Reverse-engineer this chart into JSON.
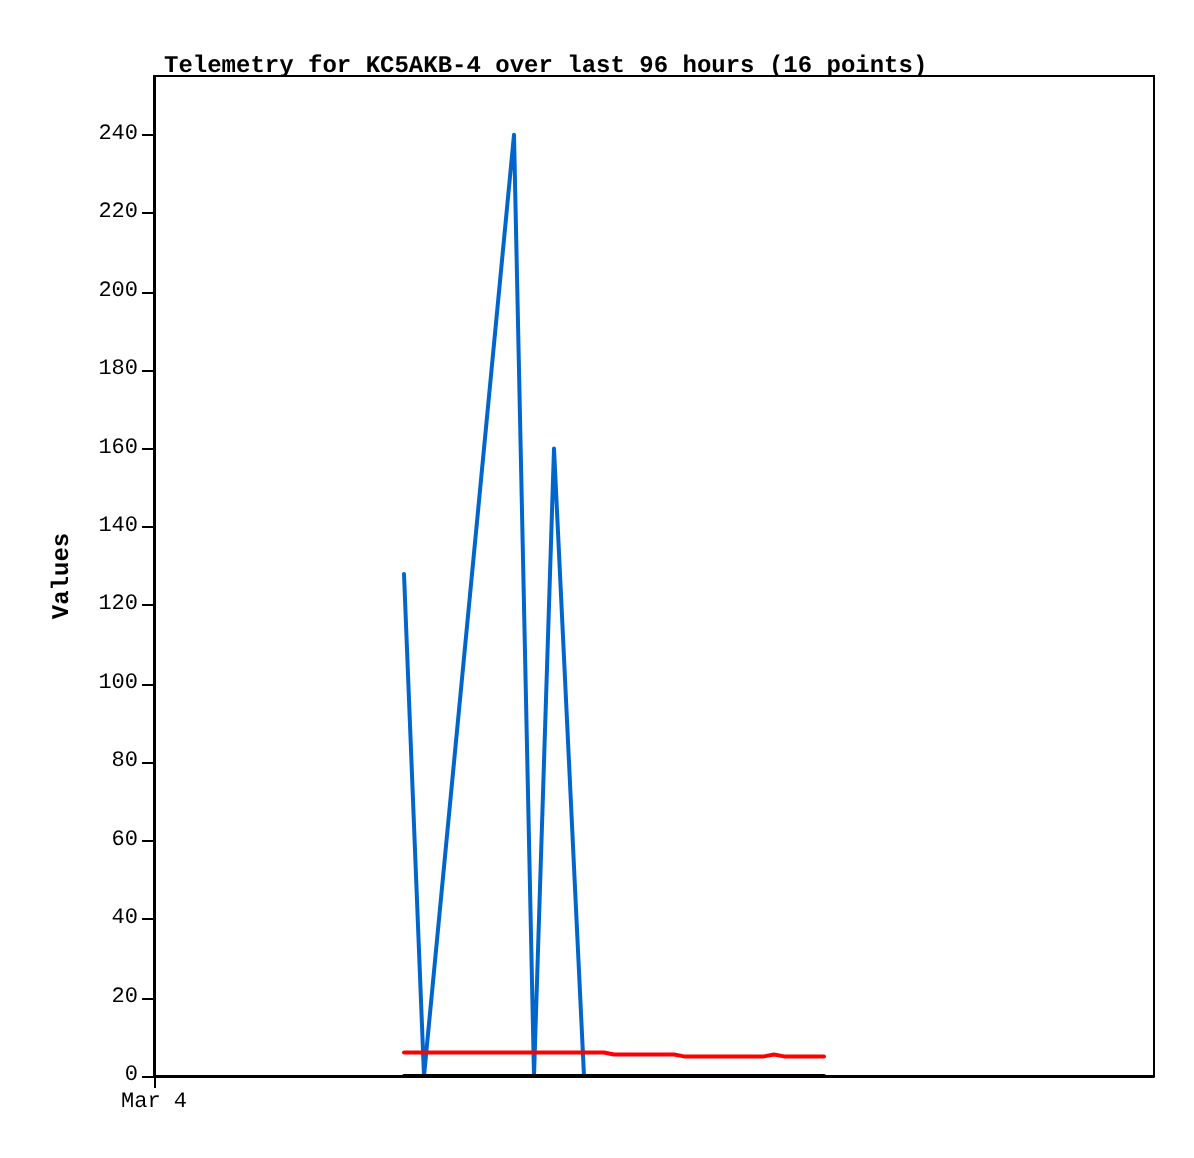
{
  "chart_data": {
    "type": "line",
    "title": "Telemetry for KC5AKB-4 over last 96 hours (16 points)",
    "ylabel": "Values",
    "categories": [
      "Mar 4",
      null,
      null,
      null,
      null,
      null,
      null,
      null,
      null,
      null,
      null,
      null,
      null,
      null,
      null,
      null,
      null,
      null,
      null,
      null,
      null,
      null,
      null,
      null,
      null,
      null,
      null,
      null,
      null,
      null,
      null,
      null,
      null,
      null,
      null,
      null,
      null,
      null,
      null,
      null,
      null,
      null,
      null,
      null,
      null,
      null,
      null,
      null,
      null,
      null,
      null,
      null,
      null,
      null,
      null,
      null,
      null,
      null,
      null,
      null,
      null,
      null,
      null,
      null,
      null,
      null,
      null,
      null,
      null,
      null,
      null,
      null,
      null,
      null,
      null,
      null,
      null,
      null,
      null,
      null,
      null,
      null,
      null,
      null,
      null,
      null,
      null,
      null,
      null,
      null,
      null,
      null,
      null,
      null,
      null,
      null,
      null,
      null,
      null,
      null,
      null
    ],
    "ylim": [
      0,
      255
    ],
    "yticks": [
      0,
      20,
      40,
      60,
      80,
      100,
      120,
      140,
      160,
      180,
      200,
      220,
      240
    ],
    "grid": false,
    "line_style": "solid",
    "series": [
      {
        "color": "#0066cc",
        "values": [
          null,
          null,
          null,
          null,
          null,
          null,
          null,
          null,
          null,
          null,
          null,
          null,
          null,
          null,
          null,
          null,
          null,
          null,
          null,
          null,
          null,
          null,
          null,
          null,
          null,
          128,
          null,
          0,
          null,
          null,
          null,
          null,
          null,
          null,
          null,
          null,
          240,
          null,
          0,
          null,
          160,
          null,
          null,
          0,
          null,
          null,
          null,
          null,
          null,
          null,
          null,
          null,
          null,
          null,
          null,
          null,
          null,
          null,
          null,
          null,
          null,
          null,
          null,
          null,
          null,
          null,
          null,
          null,
          null,
          null,
          null,
          null,
          null,
          null,
          null,
          null,
          null,
          null,
          null,
          null,
          null,
          null,
          null,
          null,
          null,
          null,
          null,
          null,
          null,
          null,
          null,
          null,
          null,
          null,
          null,
          null,
          null,
          null,
          null,
          null,
          null
        ]
      },
      {
        "color": "#ff0000",
        "values": [
          null,
          null,
          null,
          null,
          null,
          null,
          null,
          null,
          null,
          null,
          null,
          null,
          null,
          null,
          null,
          null,
          null,
          null,
          null,
          null,
          null,
          null,
          null,
          null,
          null,
          6,
          null,
          null,
          null,
          null,
          null,
          null,
          null,
          null,
          null,
          null,
          null,
          null,
          null,
          null,
          null,
          null,
          null,
          null,
          null,
          6,
          5.5,
          null,
          null,
          null,
          null,
          null,
          5.5,
          5,
          null,
          null,
          null,
          null,
          null,
          null,
          null,
          5,
          5.5,
          5,
          null,
          null,
          null,
          5,
          null,
          null,
          null,
          null,
          null,
          null,
          null,
          null,
          null,
          null,
          null,
          null,
          null,
          null,
          null,
          null,
          null,
          null,
          null,
          null,
          null,
          null,
          null,
          null,
          null,
          null,
          null,
          null,
          null,
          null,
          null,
          null,
          null
        ]
      },
      {
        "color": "#000000",
        "values": [
          null,
          null,
          null,
          null,
          null,
          null,
          null,
          null,
          null,
          null,
          null,
          null,
          null,
          null,
          null,
          null,
          null,
          null,
          null,
          null,
          null,
          null,
          null,
          null,
          null,
          0,
          null,
          null,
          null,
          null,
          null,
          null,
          null,
          null,
          null,
          null,
          null,
          null,
          null,
          null,
          null,
          null,
          null,
          null,
          null,
          null,
          null,
          null,
          null,
          null,
          null,
          null,
          null,
          null,
          null,
          null,
          null,
          null,
          null,
          null,
          null,
          null,
          null,
          null,
          null,
          null,
          null,
          0,
          null,
          null,
          null,
          null,
          null,
          null,
          null,
          null,
          null,
          null,
          null,
          null,
          null,
          null,
          null,
          null,
          null,
          null,
          null,
          null,
          null,
          null,
          null,
          null,
          null,
          null,
          null,
          null,
          null,
          null,
          null,
          null,
          null
        ]
      }
    ]
  }
}
